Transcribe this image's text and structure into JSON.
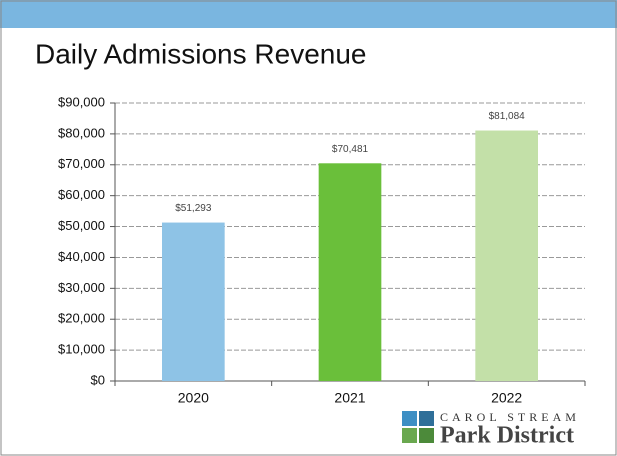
{
  "chart_data": {
    "type": "bar",
    "title": "Daily Admissions Revenue",
    "categories": [
      "2020",
      "2021",
      "2022"
    ],
    "values": [
      51293,
      70481,
      81084
    ],
    "value_labels": [
      "$51,293",
      "$70,481",
      "$81,084"
    ],
    "colors": [
      "#8ec3e6",
      "#6abf3a",
      "#c3e0a8"
    ],
    "ylim": [
      0,
      90000
    ],
    "yticks": [
      {
        "value": 0,
        "label": "$0"
      },
      {
        "value": 10000,
        "label": "$10,000"
      },
      {
        "value": 20000,
        "label": "$20,000"
      },
      {
        "value": 30000,
        "label": "$30,000"
      },
      {
        "value": 40000,
        "label": "$40,000"
      },
      {
        "value": 50000,
        "label": "$50,000"
      },
      {
        "value": 60000,
        "label": "$60,000"
      },
      {
        "value": 70000,
        "label": "$70,000"
      },
      {
        "value": 80000,
        "label": "$80,000"
      },
      {
        "value": 90000,
        "label": "$90,000"
      }
    ],
    "grid": true
  },
  "logo": {
    "line1": "CAROL STREAM",
    "line2": "Park District"
  }
}
